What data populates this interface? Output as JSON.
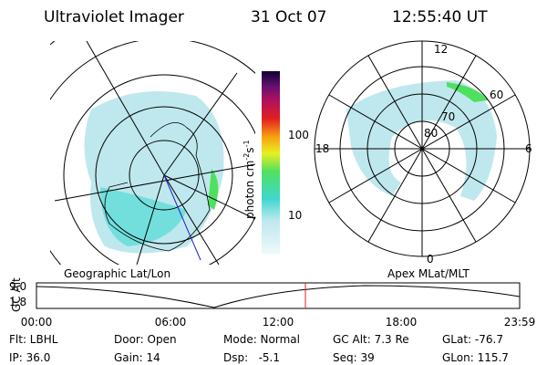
{
  "header": {
    "instrument": "Ultraviolet Imager",
    "date": "31 Oct 07",
    "time": "12:55:40 UT"
  },
  "colorbar": {
    "ticks": [
      "100",
      "10"
    ],
    "label": {
      "unit": "photon cm",
      "exp1": "-2",
      "unit2": "s",
      "exp2": "-1"
    }
  },
  "left_panel": {
    "label": "Geographic Lat/Lon"
  },
  "right_panel": {
    "label": "Apex MLat/MLT",
    "mlt_labels": [
      "12",
      "18",
      "6",
      "0"
    ],
    "lat_labels": [
      "80",
      "70",
      "60"
    ]
  },
  "timeline": {
    "axis_label": "GC Alt",
    "y_labels": [
      "9.0",
      "1.8"
    ],
    "x_labels": [
      "00:00",
      "06:00",
      "12:00",
      "18:00",
      "23:59"
    ]
  },
  "footer": {
    "rows": [
      [
        "Flt: LBHL",
        "Door: Open",
        "Mode: Normal",
        "GC Alt: 7.3 Re",
        "GLat: -76.7"
      ],
      [
        "IP: 36.0",
        "Gain: 14",
        "Dsp:   -5.1",
        "Seq: 39",
        "GLon: 115.7"
      ]
    ]
  }
}
